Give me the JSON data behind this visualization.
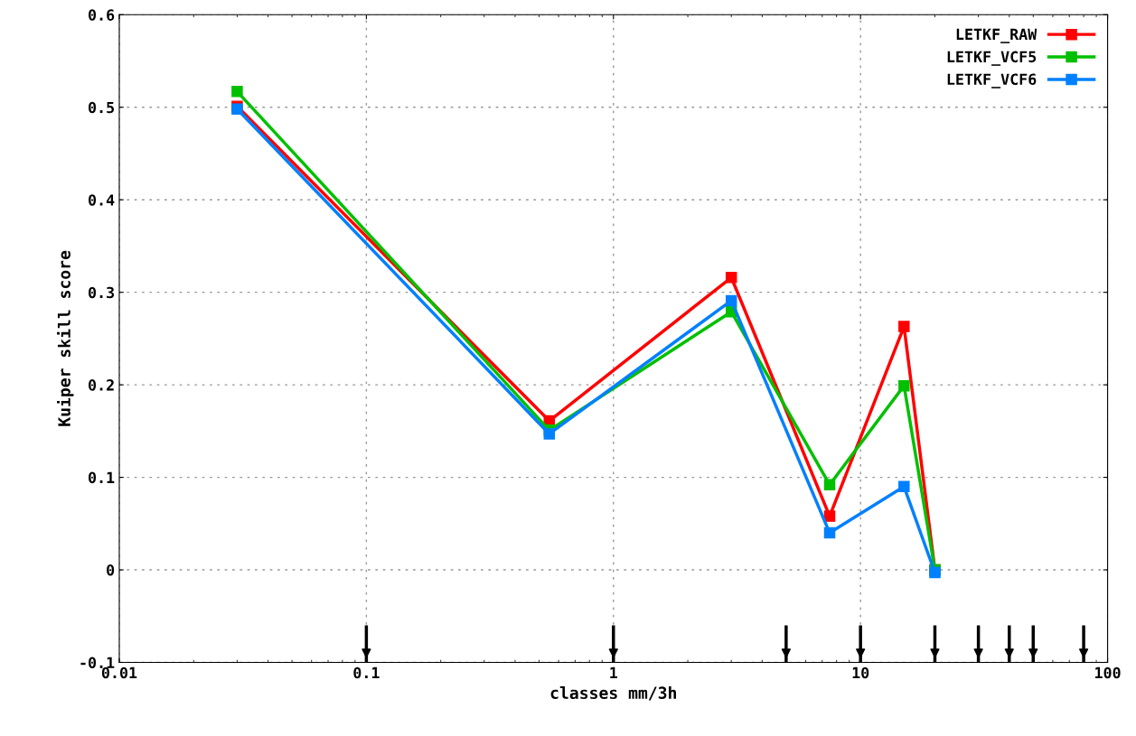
{
  "chart_data": {
    "type": "line",
    "xlabel": "classes mm/3h",
    "ylabel": "Kuiper skill score",
    "x": [
      0.03,
      0.55,
      3,
      7.5,
      15,
      20
    ],
    "series": [
      {
        "name": "LETKF_RAW",
        "color": "#ff0000",
        "values": [
          0.501,
          0.161,
          0.316,
          0.058,
          0.263,
          0.0
        ]
      },
      {
        "name": "LETKF_VCF5",
        "color": "#00c000",
        "values": [
          0.517,
          0.151,
          0.279,
          0.092,
          0.199,
          0.0
        ]
      },
      {
        "name": "LETKF_VCF6",
        "color": "#0080ff",
        "values": [
          0.498,
          0.147,
          0.291,
          0.04,
          0.09,
          -0.003
        ]
      },
      {
        "type": "scatter",
        "color": "#000000",
        "marker": "triangle",
        "x": [
          0.1,
          1,
          5,
          10,
          20,
          30,
          40,
          50,
          80
        ],
        "values": [
          -0.09,
          -0.09,
          -0.09,
          -0.09,
          -0.09,
          -0.09,
          -0.09,
          -0.09,
          -0.09
        ],
        "errors": [
          [
            -0.1,
            -0.06
          ],
          [
            -0.1,
            -0.06
          ],
          [
            -0.1,
            -0.06
          ],
          [
            -0.1,
            -0.06
          ],
          [
            -0.1,
            -0.06
          ],
          [
            -0.1,
            -0.06
          ],
          [
            -0.1,
            -0.06
          ],
          [
            -0.1,
            -0.06
          ],
          [
            -0.1,
            -0.06
          ]
        ]
      }
    ],
    "log": "x",
    "xlim": [
      0.01,
      100
    ],
    "xticks": [
      0.01,
      0.1,
      1,
      10,
      100
    ],
    "ylim": [
      -0.1,
      0.6
    ],
    "yticks": [
      {
        "value": -0.1,
        "label": "-0.1"
      },
      0,
      0.1,
      0.2,
      0.3,
      0.4,
      0.5,
      0.6
    ],
    "grid": true,
    "legend": "top right",
    "marker": "square",
    "line_style": "solid"
  }
}
